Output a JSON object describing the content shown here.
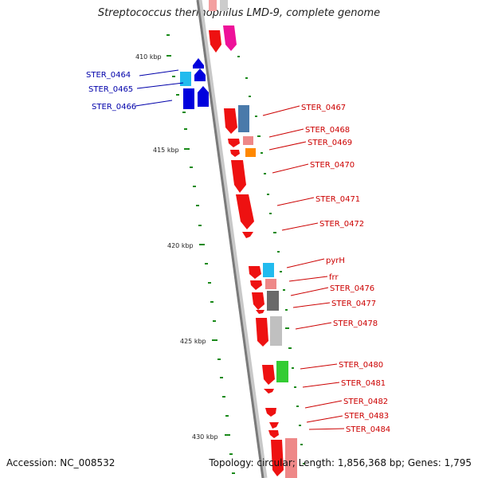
{
  "title": "Streptococcus thermophilus LMD-9, complete genome",
  "accession": "Accession: NC_008532",
  "topology": "Topology: circular; Length: 1,856,368 bp; Genes: 1,795",
  "kbp_labels": [
    "410 kbp",
    "415 kbp",
    "420 kbp",
    "425 kbp",
    "430 kbp"
  ],
  "gene_labels_left": [
    "STER_0464",
    "STER_0465",
    "STER_0466"
  ],
  "gene_labels_right": [
    "STER_0467",
    "STER_0468",
    "STER_0469",
    "STER_0470",
    "STER_0471",
    "STER_0472",
    "pyrH",
    "frr",
    "STER_0476",
    "STER_0477",
    "STER_0478",
    "STER_0480",
    "STER_0481",
    "STER_0482",
    "STER_0483",
    "STER_0484"
  ],
  "colors": {
    "backbone": "#808080",
    "tick": "#1a8a1a",
    "gene_red": "#ee1111",
    "gene_blue": "#0000dd",
    "gene_cyan": "#22bbee",
    "gene_steel": "#4a7aaa",
    "gene_pink": "#ee8888",
    "gene_orange": "#ff8800",
    "gene_gray": "#707070",
    "gene_lightgray": "#c0c0c0",
    "gene_green": "#33cc33",
    "gene_magenta": "#ee1199",
    "label_red": "#cc0000",
    "label_blue": "#0000aa"
  }
}
